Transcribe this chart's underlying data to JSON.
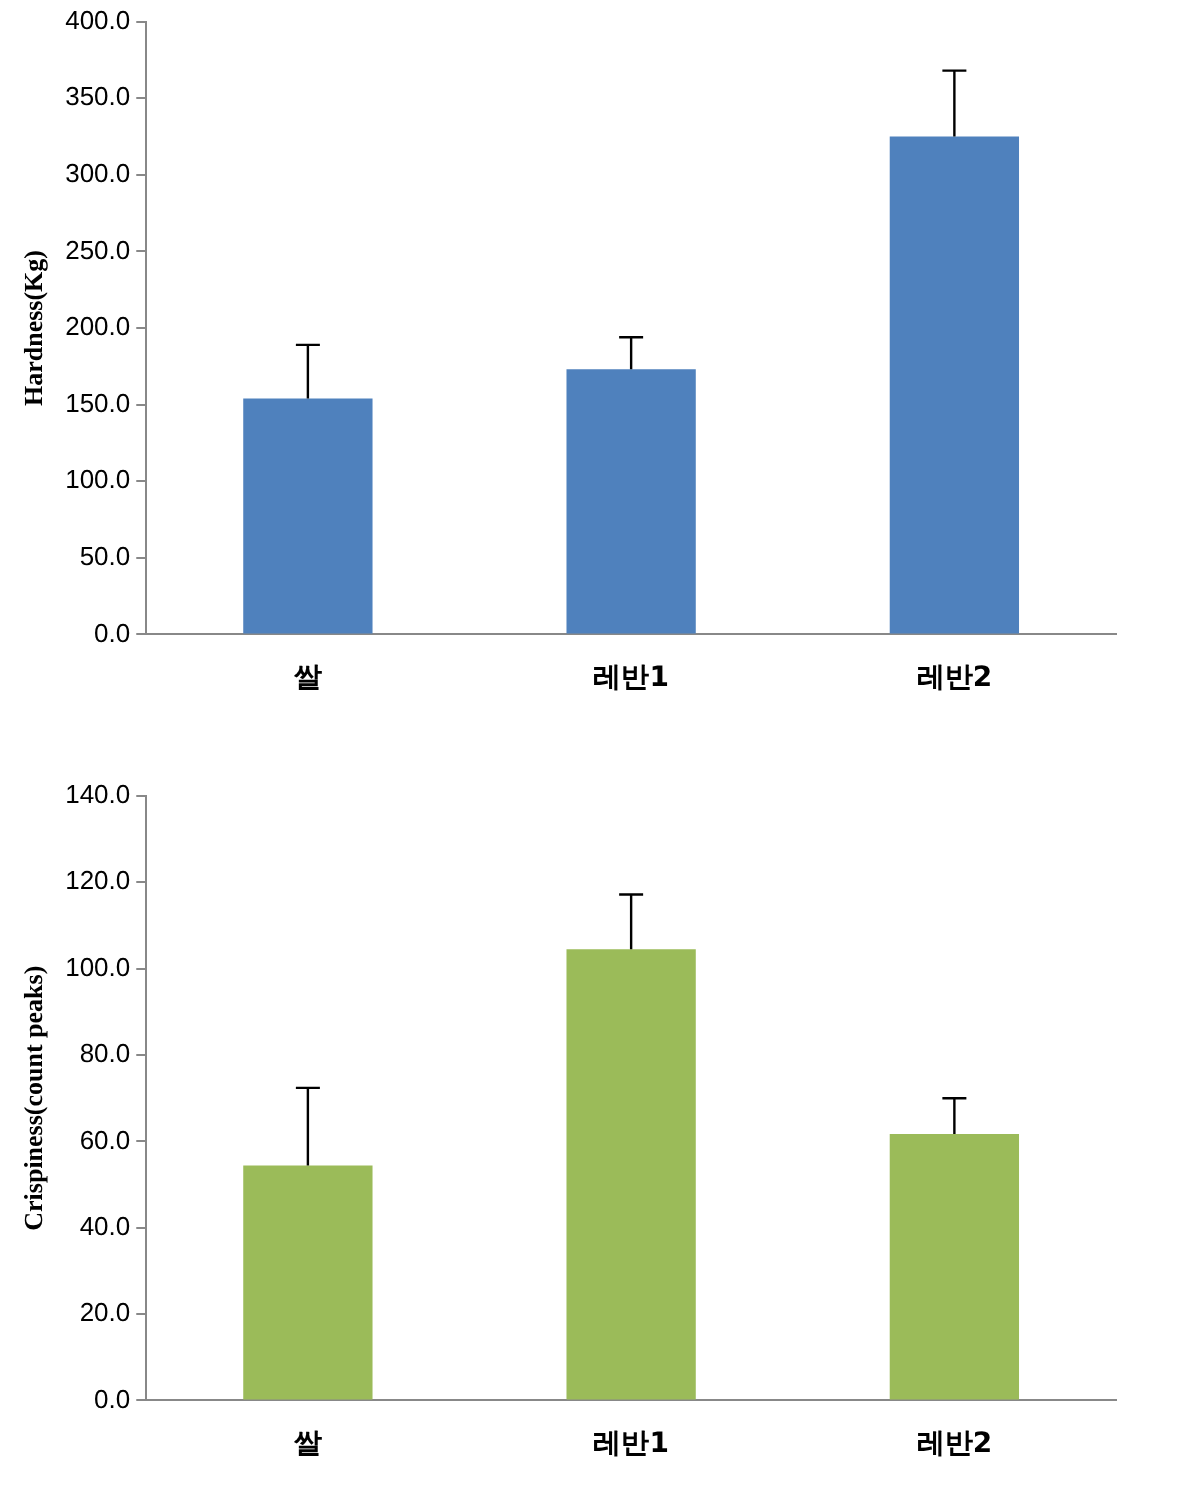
{
  "chart_data": [
    {
      "type": "bar",
      "ylabel": "Hardness(Kg)",
      "categories": [
        "쌀",
        "레반1",
        "레반2"
      ],
      "values": [
        154,
        173,
        325
      ],
      "color": "#4f81bd",
      "errors": [
        [
          154,
          189
        ],
        [
          173,
          194
        ],
        [
          325,
          368
        ]
      ],
      "ylim": [
        0,
        400
      ],
      "yticks": [
        {
          "value": 0,
          "label": "0.0"
        },
        {
          "value": 50,
          "label": "50.0"
        },
        {
          "value": 100,
          "label": "100.0"
        },
        {
          "value": 150,
          "label": "150.0"
        },
        {
          "value": 200,
          "label": "200.0"
        },
        {
          "value": 250,
          "label": "250.0"
        },
        {
          "value": 300,
          "label": "300.0"
        },
        {
          "value": 350,
          "label": "350.0"
        },
        {
          "value": 400,
          "label": "400.0"
        }
      ],
      "grid": false,
      "legend": false
    },
    {
      "type": "bar",
      "ylabel": "Crispiness(count peaks)",
      "categories": [
        "쌀",
        "레반1",
        "레반2"
      ],
      "values": [
        54.4,
        104.5,
        61.7
      ],
      "color": "#9bbb59",
      "errors": [
        [
          54.4,
          72.4
        ],
        [
          104.5,
          117.2
        ],
        [
          61.7,
          70
        ]
      ],
      "ylim": [
        0,
        140
      ],
      "yticks": [
        {
          "value": 0,
          "label": "0.0"
        },
        {
          "value": 20,
          "label": "20.0"
        },
        {
          "value": 40,
          "label": "40.0"
        },
        {
          "value": 60,
          "label": "60.0"
        },
        {
          "value": 80,
          "label": "80.0"
        },
        {
          "value": 100,
          "label": "100.0"
        },
        {
          "value": 120,
          "label": "120.0"
        },
        {
          "value": 140,
          "label": "140.0"
        }
      ],
      "grid": false,
      "legend": false
    }
  ]
}
